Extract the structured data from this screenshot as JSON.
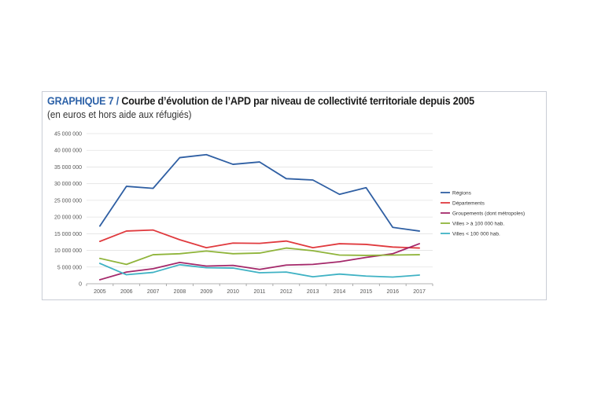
{
  "header": {
    "label": "GRAPHIQUE 7 /",
    "title": "Courbe d’évolution de l’APD par niveau de collectivité territoriale depuis 2005",
    "subtitle": "(en euros et hors aide aux réfugiés)"
  },
  "chart_data": {
    "type": "line",
    "x": [
      "2005",
      "2006",
      "2007",
      "2008",
      "2009",
      "2010",
      "2011",
      "2012",
      "2013",
      "2014",
      "2015",
      "2016",
      "2017"
    ],
    "ylim": [
      0,
      45000000
    ],
    "yticks": [
      0,
      5000000,
      10000000,
      15000000,
      20000000,
      25000000,
      30000000,
      35000000,
      40000000,
      45000000
    ],
    "ytick_labels": [
      "0",
      "5 000 000",
      "10 000 000",
      "15 000 000",
      "20 000 000",
      "25 000 000",
      "30 000 000",
      "35 000 000",
      "40 000 000",
      "45 000 000"
    ],
    "grid": true,
    "legend_position": "right",
    "series": [
      {
        "name": "Régions",
        "color": "#2f5fa3",
        "values": [
          17300000,
          29200000,
          28600000,
          37800000,
          38700000,
          35800000,
          36500000,
          31500000,
          31100000,
          26800000,
          28800000,
          16900000,
          15800000
        ]
      },
      {
        "name": "Départements",
        "color": "#e03a3e",
        "values": [
          12700000,
          15800000,
          16100000,
          13200000,
          10800000,
          12200000,
          12100000,
          12800000,
          10800000,
          12000000,
          11800000,
          11000000,
          10700000
        ]
      },
      {
        "name": "Groupements (dont métropoles)",
        "color": "#a4286a",
        "values": [
          1200000,
          3500000,
          4500000,
          6400000,
          5300000,
          5500000,
          4300000,
          5600000,
          5800000,
          6600000,
          7900000,
          9000000,
          12000000
        ]
      },
      {
        "name": "Villes > à 100 000 hab.",
        "color": "#8fb43a",
        "values": [
          7600000,
          5800000,
          8700000,
          9000000,
          9800000,
          9000000,
          9200000,
          10700000,
          9900000,
          8600000,
          8500000,
          8600000,
          8700000
        ]
      },
      {
        "name": "Villes < 100 000 hab.",
        "color": "#3fb2c4",
        "values": [
          6100000,
          2700000,
          3400000,
          5700000,
          4800000,
          4700000,
          3300000,
          3500000,
          2100000,
          2900000,
          2300000,
          2000000,
          2600000
        ]
      }
    ]
  }
}
